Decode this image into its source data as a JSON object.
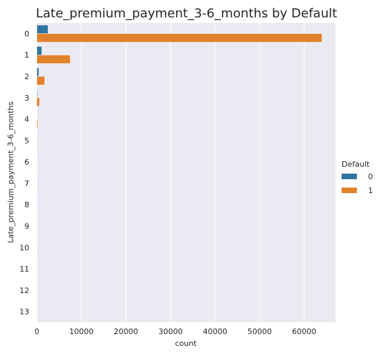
{
  "chart_data": {
    "type": "bar",
    "orientation": "horizontal",
    "title": "Late_premium_payment_3-6_months by Default",
    "xlabel": "count",
    "ylabel": "Late_premium_payment_3-6_months",
    "categories": [
      "0",
      "1",
      "2",
      "3",
      "4",
      "5",
      "6",
      "7",
      "8",
      "9",
      "10",
      "11",
      "12",
      "13"
    ],
    "xlim": [
      0,
      67000
    ],
    "xticks": [
      0,
      10000,
      20000,
      30000,
      40000,
      50000,
      60000
    ],
    "grid": true,
    "legend": {
      "title": "Default",
      "placement": "right",
      "entries": [
        "0",
        "1"
      ]
    },
    "series": [
      {
        "name": "0",
        "color": "#3274a1",
        "values": [
          2500,
          1100,
          450,
          150,
          60,
          25,
          10,
          5,
          3,
          2,
          1,
          1,
          0,
          0
        ]
      },
      {
        "name": "1",
        "color": "#e1812c",
        "values": [
          64000,
          7500,
          1750,
          600,
          220,
          90,
          35,
          15,
          10,
          5,
          3,
          2,
          1,
          1
        ]
      }
    ]
  }
}
